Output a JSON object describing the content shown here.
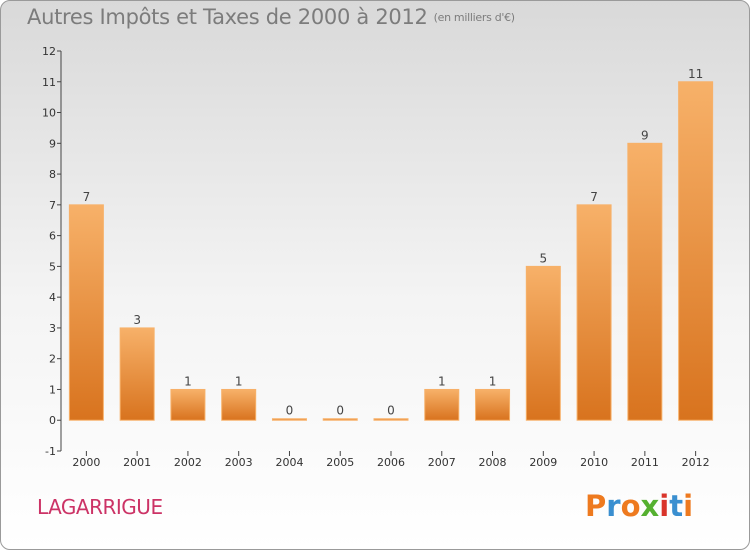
{
  "header": {
    "title": "Autres Impôts et Taxes de 2000 à 2012",
    "unit": "(en milliers d'€)"
  },
  "commune": "LAGARRIGUE",
  "logo": {
    "text": "Proxiti",
    "colors": [
      "#ee7a1f",
      "#3a8fd0",
      "#ee7a1f",
      "#55b030",
      "#d9342b",
      "#3a8fd0",
      "#ee7a1f"
    ]
  },
  "colors": {
    "bar": "#f29a43",
    "bar_light": "#f7b169",
    "bar_dark": "#d8731e"
  },
  "chart_data": {
    "type": "bar",
    "categories": [
      "2000",
      "2001",
      "2002",
      "2003",
      "2004",
      "2005",
      "2006",
      "2007",
      "2008",
      "2009",
      "2010",
      "2011",
      "2012"
    ],
    "values": [
      7,
      3,
      1,
      1,
      0,
      0,
      0,
      1,
      1,
      5,
      7,
      9,
      11
    ],
    "value_labels": [
      "7",
      "3",
      "1",
      "1",
      "0",
      "0",
      "0",
      "1",
      "1",
      "5",
      "7",
      "9",
      "11"
    ],
    "title": "Autres Impôts et Taxes de 2000 à 2012",
    "xlabel": "",
    "ylabel": "",
    "ylim": [
      -1,
      12
    ],
    "yticks": [
      -1,
      0,
      1,
      2,
      3,
      4,
      5,
      6,
      7,
      8,
      9,
      10,
      11,
      12
    ],
    "ytick_labels": [
      "-1",
      "0",
      "1",
      "2",
      "3",
      "4",
      "5",
      "6",
      "7",
      "8",
      "9",
      "10",
      "11",
      "12"
    ],
    "grid": false,
    "legend": "none"
  }
}
